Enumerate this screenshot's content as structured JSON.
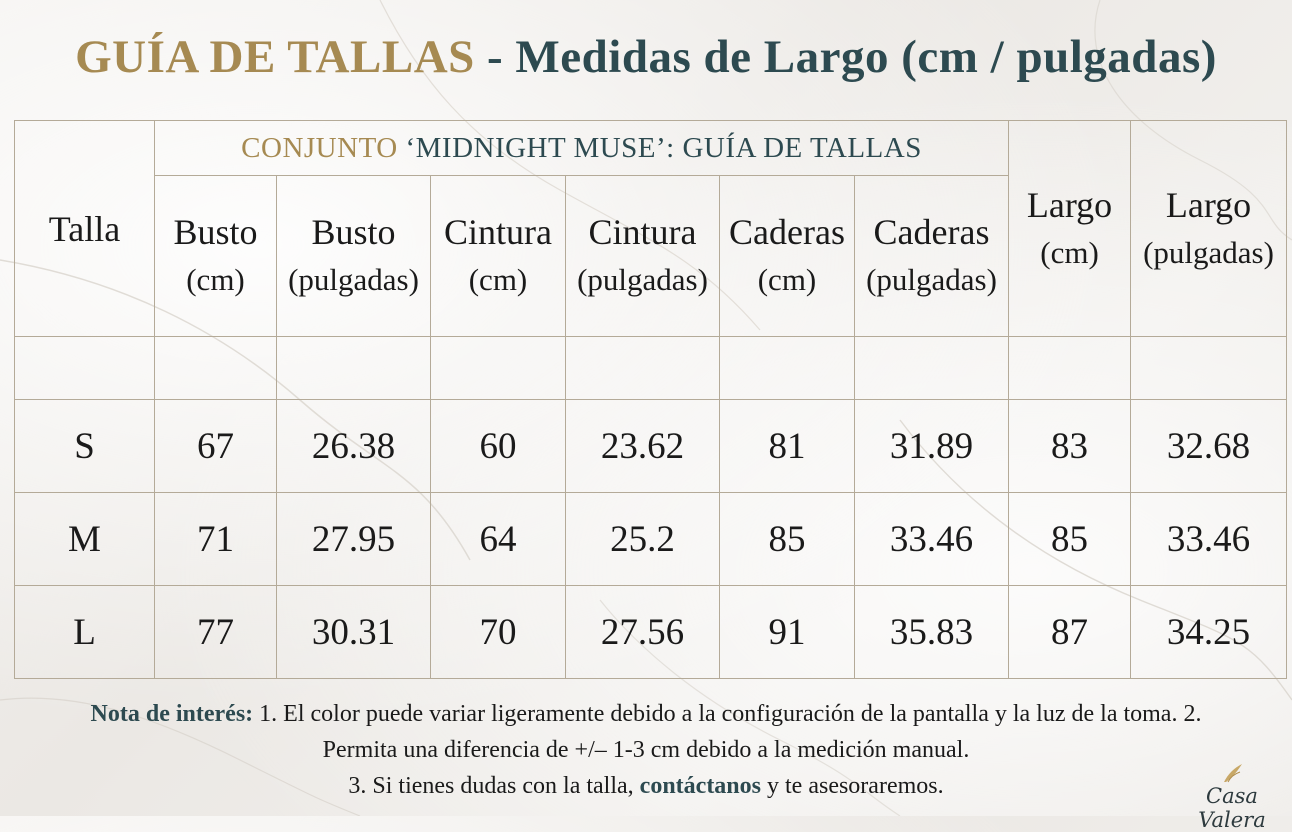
{
  "title": {
    "highlight": "GUÍA DE TALLAS",
    "rest": " - Medidas de Largo (cm / pulgadas)"
  },
  "table": {
    "size_header": "Talla",
    "group_header_prefix": "CONJUNTO ",
    "group_header_name": "‘MIDNIGHT MUSE’",
    "group_header_suffix": ": GUÍA DE TALLAS",
    "columns": [
      {
        "label": "Busto",
        "unit": "(cm)"
      },
      {
        "label": "Busto",
        "unit": "(pulgadas)"
      },
      {
        "label": "Cintura",
        "unit": "(cm)"
      },
      {
        "label": "Cintura",
        "unit": "(pulgadas)"
      },
      {
        "label": "Caderas",
        "unit": "(cm)"
      },
      {
        "label": "Caderas",
        "unit": "(pulgadas)"
      },
      {
        "label": "Largo",
        "unit": "(cm)"
      },
      {
        "label": "Largo",
        "unit": "(pulgadas)"
      }
    ],
    "rows": [
      {
        "size": "S",
        "values": [
          "67",
          "26.38",
          "60",
          "23.62",
          "81",
          "31.89",
          "83",
          "32.68"
        ]
      },
      {
        "size": "M",
        "values": [
          "71",
          "27.95",
          "64",
          "25.2",
          "85",
          "33.46",
          "85",
          "33.46"
        ]
      },
      {
        "size": "L",
        "values": [
          "77",
          "30.31",
          "70",
          "27.56",
          "91",
          "35.83",
          "87",
          "34.25"
        ]
      }
    ]
  },
  "note": {
    "lead": "Nota de interés:",
    "line1": " 1. El color puede variar ligeramente debido a la configuración de la pantalla y la luz de la toma. 2. Permita una diferencia de +/– 1-3 cm debido a la medición manual.",
    "line2_prefix": "3. Si tienes dudas con la talla, ",
    "link": "contáctanos",
    "line2_suffix": " y te asesoraremos."
  },
  "logo": {
    "text": "Casa Valera"
  },
  "colors": {
    "gold": "#a68a52",
    "teal": "#2d4a50",
    "border": "#b4aa98"
  }
}
